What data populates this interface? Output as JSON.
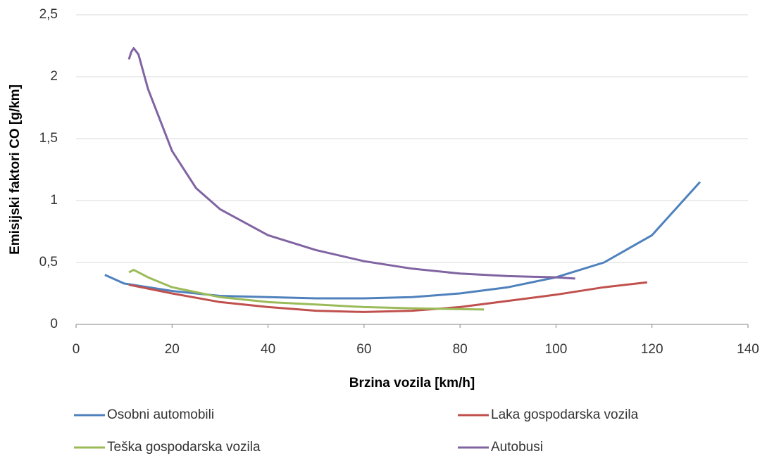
{
  "chart_data": {
    "type": "line",
    "xlabel": "Brzina vozila [km/h]",
    "ylabel": "Emisijski faktori CO [g/km]",
    "series": [
      {
        "name": "Osobni automobili",
        "color": "#4f81bd",
        "x": [
          6,
          10,
          20,
          30,
          40,
          50,
          60,
          70,
          80,
          90,
          100,
          110,
          120,
          130
        ],
        "values": [
          0.4,
          0.33,
          0.27,
          0.23,
          0.22,
          0.21,
          0.21,
          0.22,
          0.25,
          0.3,
          0.38,
          0.5,
          0.72,
          1.15
        ]
      },
      {
        "name": "Laka gospodarska vozila",
        "color": "#c0504d",
        "x": [
          11,
          20,
          30,
          40,
          50,
          60,
          70,
          80,
          90,
          100,
          110,
          119
        ],
        "values": [
          0.32,
          0.25,
          0.18,
          0.14,
          0.11,
          0.1,
          0.11,
          0.14,
          0.19,
          0.24,
          0.3,
          0.34
        ]
      },
      {
        "name": "Teška gospodarska vozila",
        "color": "#9bbb59",
        "x": [
          11,
          12,
          15,
          20,
          30,
          40,
          50,
          60,
          70,
          85
        ],
        "values": [
          0.42,
          0.44,
          0.38,
          0.3,
          0.22,
          0.18,
          0.16,
          0.14,
          0.13,
          0.12
        ]
      },
      {
        "name": "Autobusi",
        "color": "#8064a2",
        "x": [
          11,
          11.5,
          12,
          13,
          15,
          20,
          25,
          30,
          40,
          50,
          60,
          70,
          80,
          90,
          100,
          104
        ],
        "values": [
          2.14,
          2.2,
          2.23,
          2.18,
          1.9,
          1.4,
          1.1,
          0.93,
          0.72,
          0.6,
          0.51,
          0.45,
          0.41,
          0.39,
          0.38,
          0.37
        ]
      }
    ],
    "xlim": [
      0,
      140
    ],
    "xticks": [
      0,
      20,
      40,
      60,
      80,
      100,
      120,
      140
    ],
    "ylim": [
      0,
      2.5
    ],
    "yticks": [
      0,
      {
        "value": 0.5,
        "label": "0,5"
      },
      1,
      {
        "value": 1.5,
        "label": "1,5"
      },
      2,
      {
        "value": 2.5,
        "label": "2,5"
      }
    ],
    "grid": true,
    "legend": "bottom"
  }
}
